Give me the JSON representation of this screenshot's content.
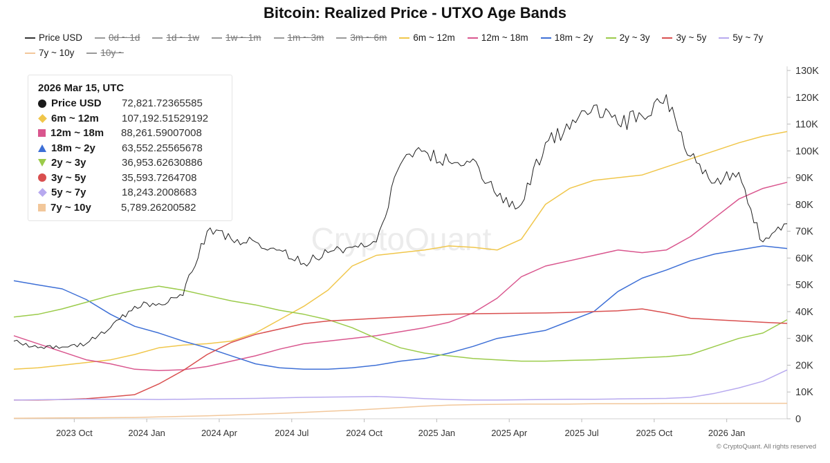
{
  "chart_data": {
    "type": "line",
    "title": "Bitcoin: Realized Price - UTXO Age Bands",
    "xlabel": "",
    "ylabel": "",
    "ylim": [
      0,
      130000
    ],
    "xlim": [
      0,
      32
    ],
    "grid": false,
    "legend_position": "top",
    "y_ticks": [
      {
        "value": 0,
        "label": "0"
      },
      {
        "value": 10000,
        "label": "10K"
      },
      {
        "value": 20000,
        "label": "20K"
      },
      {
        "value": 30000,
        "label": "30K"
      },
      {
        "value": 40000,
        "label": "40K"
      },
      {
        "value": 50000,
        "label": "50K"
      },
      {
        "value": 60000,
        "label": "60K"
      },
      {
        "value": 70000,
        "label": "70K"
      },
      {
        "value": 80000,
        "label": "80K"
      },
      {
        "value": 90000,
        "label": "90K"
      },
      {
        "value": 100000,
        "label": "100K"
      },
      {
        "value": 110000,
        "label": "110K"
      },
      {
        "value": 120000,
        "label": "120K"
      },
      {
        "value": 130000,
        "label": "130K"
      }
    ],
    "x_ticks": [
      {
        "value": 2.5,
        "label": "2023 Oct"
      },
      {
        "value": 5.5,
        "label": "2024 Jan"
      },
      {
        "value": 8.5,
        "label": "2024 Apr"
      },
      {
        "value": 11.5,
        "label": "2024 Jul"
      },
      {
        "value": 14.5,
        "label": "2024 Oct"
      },
      {
        "value": 17.5,
        "label": "2025 Jan"
      },
      {
        "value": 20.5,
        "label": "2025 Apr"
      },
      {
        "value": 23.5,
        "label": "2025 Jul"
      },
      {
        "value": 26.5,
        "label": "2025 Oct"
      },
      {
        "value": 29.5,
        "label": "2026 Jan"
      }
    ],
    "legend": [
      {
        "name": "Price USD",
        "color": "#333333",
        "active": true
      },
      {
        "name": "0d ~ 1d",
        "color": "#999999",
        "active": false
      },
      {
        "name": "1d ~ 1w",
        "color": "#999999",
        "active": false
      },
      {
        "name": "1w ~ 1m",
        "color": "#999999",
        "active": false
      },
      {
        "name": "1m ~ 3m",
        "color": "#999999",
        "active": false
      },
      {
        "name": "3m ~ 6m",
        "color": "#999999",
        "active": false
      },
      {
        "name": "6m ~ 12m",
        "color": "#f0c64a",
        "active": true
      },
      {
        "name": "12m ~ 18m",
        "color": "#d9568e",
        "active": true
      },
      {
        "name": "18m ~ 2y",
        "color": "#3d6fd6",
        "active": true
      },
      {
        "name": "2y ~ 3y",
        "color": "#9bcb4a",
        "active": true
      },
      {
        "name": "3y ~ 5y",
        "color": "#d94f4f",
        "active": true
      },
      {
        "name": "5y ~ 7y",
        "color": "#b7a9ef",
        "active": true
      },
      {
        "name": "7y ~ 10y",
        "color": "#f2c79a",
        "active": true
      },
      {
        "name": "10y ~",
        "color": "#999999",
        "active": false
      }
    ],
    "x": [
      0,
      1,
      2,
      3,
      4,
      5,
      6,
      7,
      8,
      9,
      10,
      11,
      12,
      13,
      14,
      15,
      16,
      17,
      18,
      19,
      20,
      21,
      22,
      23,
      24,
      25,
      26,
      27,
      28,
      29,
      30,
      31,
      32
    ],
    "series": [
      {
        "name": "Price USD",
        "color": "#1f1f1f",
        "width": 1,
        "values": [
          29000,
          26500,
          26800,
          28000,
          34000,
          42000,
          43000,
          46000,
          70000,
          67000,
          66000,
          63000,
          58000,
          62000,
          64000,
          66000,
          95000,
          100000,
          96000,
          97000,
          83000,
          80000,
          103000,
          108000,
          117000,
          110000,
          113000,
          121000,
          98000,
          88000,
          92000,
          66000,
          72821.72
        ]
      },
      {
        "name": "6m ~ 12m",
        "color": "#f0c64a",
        "width": 1.5,
        "values": [
          18500,
          19000,
          20000,
          21000,
          22000,
          24000,
          26500,
          27500,
          28000,
          29000,
          32000,
          37000,
          42000,
          48000,
          57000,
          61000,
          62000,
          63000,
          64500,
          64000,
          63000,
          67000,
          80000,
          86000,
          89000,
          90000,
          91000,
          94000,
          97000,
          100000,
          103000,
          105500,
          107192.52
        ]
      },
      {
        "name": "12m ~ 18m",
        "color": "#d9568e",
        "width": 1.5,
        "values": [
          31000,
          28000,
          25000,
          22000,
          20500,
          18500,
          18000,
          18300,
          19500,
          21500,
          23500,
          26000,
          28000,
          29000,
          30000,
          31000,
          32500,
          34000,
          36000,
          39500,
          45000,
          53000,
          57000,
          59000,
          61000,
          63000,
          62000,
          63000,
          68000,
          75000,
          82000,
          86000,
          88261.59
        ]
      },
      {
        "name": "18m ~ 2y",
        "color": "#3d6fd6",
        "width": 1.5,
        "values": [
          51500,
          50000,
          48500,
          44500,
          39000,
          34500,
          32000,
          29000,
          26500,
          23500,
          20500,
          19000,
          18500,
          18500,
          19000,
          20000,
          21500,
          22500,
          24500,
          27000,
          30000,
          31500,
          33000,
          36500,
          40000,
          47500,
          52500,
          55500,
          59000,
          61500,
          63000,
          64500,
          63552.26
        ]
      },
      {
        "name": "2y ~ 3y",
        "color": "#9bcb4a",
        "width": 1.5,
        "values": [
          38000,
          39000,
          41000,
          43500,
          46000,
          48000,
          49500,
          48000,
          46000,
          44000,
          42500,
          40500,
          39000,
          37000,
          34000,
          30000,
          26500,
          24500,
          23500,
          22500,
          22000,
          21500,
          21500,
          21800,
          22000,
          22400,
          22800,
          23200,
          24000,
          27000,
          30000,
          32000,
          36953.63
        ]
      },
      {
        "name": "3y ~ 5y",
        "color": "#d94f4f",
        "width": 1.5,
        "values": [
          7000,
          7000,
          7200,
          7500,
          8200,
          9000,
          13000,
          18000,
          24000,
          28500,
          31500,
          33500,
          35500,
          36500,
          37000,
          37500,
          38000,
          38500,
          39000,
          39200,
          39300,
          39400,
          39500,
          39700,
          40000,
          40300,
          41000,
          39500,
          37500,
          37000,
          36500,
          36000,
          35593.73
        ]
      },
      {
        "name": "5y ~ 7y",
        "color": "#b7a9ef",
        "width": 1.5,
        "values": [
          7000,
          7100,
          7200,
          7300,
          7300,
          7300,
          7200,
          7300,
          7400,
          7500,
          7600,
          7800,
          8000,
          8100,
          8200,
          8300,
          8000,
          7500,
          7200,
          7000,
          7000,
          7100,
          7200,
          7300,
          7300,
          7400,
          7500,
          7600,
          8000,
          9500,
          11500,
          14000,
          18243.2
        ]
      },
      {
        "name": "7y ~ 10y",
        "color": "#f2c79a",
        "width": 1.5,
        "values": [
          200,
          250,
          300,
          350,
          400,
          500,
          700,
          900,
          1100,
          1400,
          1700,
          2000,
          2400,
          2800,
          3200,
          3700,
          4200,
          4700,
          5100,
          5300,
          5400,
          5500,
          5500,
          5500,
          5600,
          5600,
          5600,
          5700,
          5700,
          5750,
          5780,
          5790,
          5789.26
        ]
      }
    ]
  },
  "tooltip": {
    "date": "2026 Mar 15, UTC",
    "rows": [
      {
        "label": "Price USD",
        "value": "72,821.72365585",
        "color": "#1a1a1a",
        "shape": "circle"
      },
      {
        "label": "6m ~ 12m",
        "value": "107,192.51529192",
        "color": "#f0c64a",
        "shape": "diamond"
      },
      {
        "label": "12m ~ 18m",
        "value": "88,261.59007008",
        "color": "#d9568e",
        "shape": "square"
      },
      {
        "label": "18m ~ 2y",
        "value": "63,552.25565678",
        "color": "#3d6fd6",
        "shape": "triangle"
      },
      {
        "label": "2y ~ 3y",
        "value": "36,953.62630886",
        "color": "#9bcb4a",
        "shape": "triangle-down"
      },
      {
        "label": "3y ~ 5y",
        "value": "35,593.7264708",
        "color": "#d94f4f",
        "shape": "circle"
      },
      {
        "label": "5y ~ 7y",
        "value": "18,243.2008683",
        "color": "#b7a9ef",
        "shape": "diamond"
      },
      {
        "label": "7y ~ 10y",
        "value": "5,789.26200582",
        "color": "#f2c79a",
        "shape": "square"
      }
    ]
  },
  "watermark": "CryptoQuant",
  "footer": "© CryptoQuant. All rights reserved"
}
